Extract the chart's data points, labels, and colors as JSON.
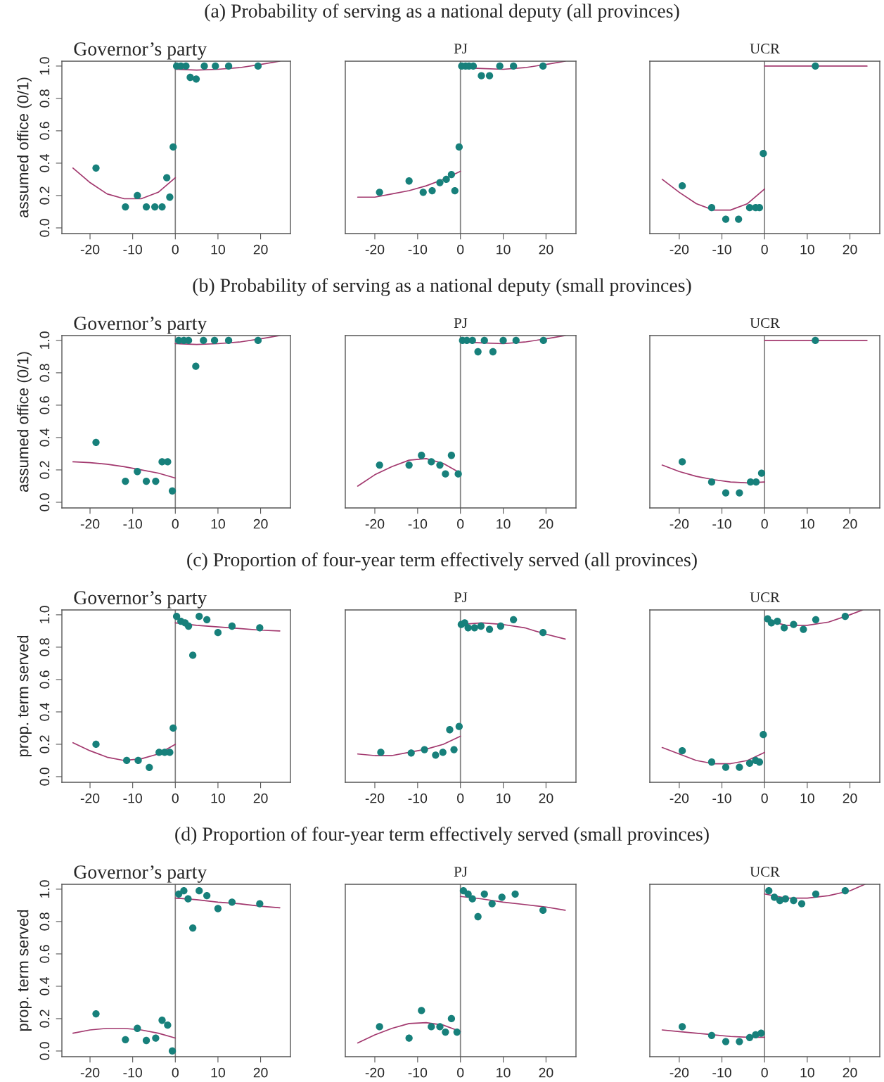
{
  "chart_data": [
    {
      "type": "scatter",
      "title": "(a) Probability of serving as a national deputy (all provinces)",
      "subtitle": "Governor’s party",
      "ylabel": "assumed office (0/1)",
      "xlim": [
        -26.6,
        27
      ],
      "ylim": [
        -0.035,
        1.03
      ],
      "xticks": [
        -20,
        -10,
        0,
        10,
        20
      ],
      "yticks": [
        {
          "value": 0,
          "label": "0.0"
        },
        {
          "value": 0.2,
          "label": "0.2"
        },
        {
          "value": 0.4,
          "label": "0.4"
        },
        {
          "value": 0.6,
          "label": "0.6"
        },
        {
          "value": 0.8,
          "label": "0.8"
        },
        {
          "value": 1,
          "label": "1.0"
        }
      ],
      "ref_lines": [
        {
          "axis": "x",
          "value": 0,
          "color": "#7f7f7f"
        }
      ],
      "series": [
        {
          "type": "scatter",
          "marker": "circle",
          "color": "#17807b",
          "x": [
            -18.6,
            -11.7,
            -8.9,
            -6.8,
            -4.8,
            -3.1,
            -2,
            -1.3,
            -0.5,
            0.3,
            1.3,
            2.5,
            3.5,
            4.9,
            6.8,
            9.4,
            12.5,
            19.4
          ],
          "values": [
            0.37,
            0.13,
            0.2,
            0.13,
            0.13,
            0.13,
            0.31,
            0.19,
            0.5,
            1,
            1,
            1,
            0.93,
            0.92,
            1,
            1,
            1,
            1
          ]
        },
        {
          "type": "line",
          "line_style": "solid",
          "color": "#a2386e",
          "x": [
            -24,
            -20,
            -16,
            -12,
            -8,
            -4,
            0
          ],
          "values": [
            0.37,
            0.28,
            0.21,
            0.18,
            0.18,
            0.22,
            0.31
          ]
        },
        {
          "type": "line",
          "line_style": "solid",
          "color": "#a2386e",
          "x": [
            0,
            5,
            10,
            15,
            20,
            24.5
          ],
          "values": [
            0.98,
            0.975,
            0.98,
            0.99,
            1.01,
            1.03
          ]
        }
      ]
    },
    {
      "type": "scatter",
      "subtitle": "PJ",
      "xlim": [
        -26.9,
        27
      ],
      "ylim": [
        -0.035,
        1.03
      ],
      "xticks": [
        -20,
        -10,
        0,
        10,
        20
      ],
      "tick_labels": "x",
      "ref_lines": [
        {
          "axis": "x",
          "value": 0,
          "color": "#7f7f7f"
        }
      ],
      "series": [
        {
          "type": "scatter",
          "marker": "circle",
          "color": "#17807b",
          "x": [
            -18.9,
            -12,
            -8.7,
            -6.6,
            -4.8,
            -3.3,
            -2.1,
            -1.3,
            -0.3,
            0.3,
            1.2,
            2,
            3,
            4.9,
            6.8,
            9.2,
            12.4,
            19.3
          ],
          "values": [
            0.22,
            0.29,
            0.22,
            0.23,
            0.28,
            0.3,
            0.33,
            0.23,
            0.5,
            1,
            1,
            1,
            1,
            0.94,
            0.94,
            1,
            1,
            1
          ]
        },
        {
          "type": "line",
          "line_style": "solid",
          "color": "#a2386e",
          "x": [
            -24,
            -20,
            -16,
            -12,
            -8,
            -4,
            0
          ],
          "values": [
            0.19,
            0.19,
            0.21,
            0.23,
            0.26,
            0.3,
            0.35
          ]
        },
        {
          "type": "line",
          "line_style": "solid",
          "color": "#a2386e",
          "x": [
            0,
            5,
            10,
            15,
            20,
            24.5
          ],
          "values": [
            0.99,
            0.985,
            0.98,
            0.99,
            1.01,
            1.03
          ]
        }
      ]
    },
    {
      "type": "scatter",
      "subtitle": "UCR",
      "xlim": [
        -26.9,
        27
      ],
      "ylim": [
        -0.035,
        1.03
      ],
      "xticks": [
        -20,
        -10,
        0,
        10,
        20
      ],
      "tick_labels": "x",
      "ref_lines": [
        {
          "axis": "x",
          "value": 0,
          "color": "#7f7f7f"
        }
      ],
      "series": [
        {
          "type": "scatter",
          "marker": "circle",
          "color": "#17807b",
          "x": [
            -19.3,
            -12.4,
            -9.1,
            -6.1,
            -3.5,
            -2.1,
            -1.2,
            -0.3,
            11.9
          ],
          "values": [
            0.26,
            0.125,
            0.054,
            0.054,
            0.125,
            0.125,
            0.125,
            0.46,
            1
          ]
        },
        {
          "type": "line",
          "line_style": "solid",
          "color": "#a2386e",
          "x": [
            -24,
            -20,
            -16,
            -12,
            -8,
            -4,
            0
          ],
          "values": [
            0.3,
            0.22,
            0.15,
            0.11,
            0.11,
            0.15,
            0.24
          ]
        },
        {
          "type": "line",
          "line_style": "solid",
          "color": "#a2386e",
          "x": [
            0,
            24
          ],
          "values": [
            1,
            1
          ]
        }
      ]
    },
    {
      "type": "scatter",
      "title": "(b) Probability of serving as a national deputy (small provinces)",
      "subtitle": "Governor’s party",
      "ylabel": "assumed office (0/1)",
      "xlim": [
        -26.6,
        27
      ],
      "ylim": [
        -0.035,
        1.03
      ],
      "xticks": [
        -20,
        -10,
        0,
        10,
        20
      ],
      "yticks": [
        {
          "value": 0,
          "label": "0.0"
        },
        {
          "value": 0.2,
          "label": "0.2"
        },
        {
          "value": 0.4,
          "label": "0.4"
        },
        {
          "value": 0.6,
          "label": "0.6"
        },
        {
          "value": 0.8,
          "label": "0.8"
        },
        {
          "value": 1,
          "label": "1.0"
        }
      ],
      "ref_lines": [
        {
          "axis": "x",
          "value": 0,
          "color": "#7f7f7f"
        }
      ],
      "series": [
        {
          "type": "scatter",
          "marker": "circle",
          "color": "#17807b",
          "x": [
            -18.6,
            -11.7,
            -8.9,
            -6.8,
            -4.6,
            -3.1,
            -1.8,
            -0.7,
            0.8,
            2,
            3.1,
            4.8,
            6.6,
            9.2,
            12.5,
            19.4
          ],
          "values": [
            0.37,
            0.13,
            0.19,
            0.13,
            0.13,
            0.25,
            0.25,
            0.07,
            1,
            1,
            1,
            0.84,
            1,
            1,
            1,
            1
          ]
        },
        {
          "type": "line",
          "line_style": "solid",
          "color": "#a2386e",
          "x": [
            -24,
            -20,
            -16,
            -12,
            -8,
            -4,
            0
          ],
          "values": [
            0.25,
            0.245,
            0.235,
            0.22,
            0.2,
            0.18,
            0.15
          ]
        },
        {
          "type": "line",
          "line_style": "solid",
          "color": "#a2386e",
          "x": [
            0,
            5,
            10,
            15,
            20,
            24.5
          ],
          "values": [
            0.98,
            0.975,
            0.98,
            0.99,
            1.01,
            1.03
          ]
        }
      ]
    },
    {
      "type": "scatter",
      "subtitle": "PJ",
      "xlim": [
        -26.9,
        27
      ],
      "ylim": [
        -0.035,
        1.03
      ],
      "xticks": [
        -20,
        -10,
        0,
        10,
        20
      ],
      "tick_labels": "x",
      "ref_lines": [
        {
          "axis": "x",
          "value": 0,
          "color": "#7f7f7f"
        }
      ],
      "series": [
        {
          "type": "scatter",
          "marker": "circle",
          "color": "#17807b",
          "x": [
            -18.9,
            -12,
            -9.1,
            -6.8,
            -4.8,
            -3.5,
            -2.1,
            -0.5,
            0.5,
            1.5,
            2.8,
            4.1,
            5.6,
            7.6,
            10,
            13,
            19.4
          ],
          "values": [
            0.23,
            0.23,
            0.29,
            0.25,
            0.23,
            0.175,
            0.29,
            0.175,
            1,
            1,
            1,
            0.93,
            1,
            0.93,
            1,
            1,
            1
          ]
        },
        {
          "type": "line",
          "line_style": "solid",
          "color": "#a2386e",
          "x": [
            -24,
            -20,
            -16,
            -12,
            -8,
            -4,
            0
          ],
          "values": [
            0.1,
            0.17,
            0.22,
            0.26,
            0.27,
            0.24,
            0.18
          ]
        },
        {
          "type": "line",
          "line_style": "solid",
          "color": "#a2386e",
          "x": [
            0,
            5,
            10,
            15,
            20,
            24.5
          ],
          "values": [
            0.99,
            0.985,
            0.98,
            0.99,
            1.01,
            1.03
          ]
        }
      ]
    },
    {
      "type": "scatter",
      "subtitle": "UCR",
      "xlim": [
        -26.9,
        27
      ],
      "ylim": [
        -0.035,
        1.03
      ],
      "xticks": [
        -20,
        -10,
        0,
        10,
        20
      ],
      "tick_labels": "x",
      "ref_lines": [
        {
          "axis": "x",
          "value": 0,
          "color": "#7f7f7f"
        }
      ],
      "series": [
        {
          "type": "scatter",
          "marker": "circle",
          "color": "#17807b",
          "x": [
            -19.3,
            -12.4,
            -9.1,
            -5.9,
            -3.3,
            -2,
            -0.7,
            11.9
          ],
          "values": [
            0.25,
            0.125,
            0.058,
            0.058,
            0.125,
            0.125,
            0.18,
            1
          ]
        },
        {
          "type": "line",
          "line_style": "solid",
          "color": "#a2386e",
          "x": [
            -24,
            -20,
            -16,
            -12,
            -8,
            -4,
            0
          ],
          "values": [
            0.23,
            0.19,
            0.16,
            0.14,
            0.125,
            0.12,
            0.125
          ]
        },
        {
          "type": "line",
          "line_style": "solid",
          "color": "#a2386e",
          "x": [
            0,
            24
          ],
          "values": [
            1,
            1
          ]
        }
      ]
    },
    {
      "type": "scatter",
      "title": "(c) Proportion of four-year term effectively served (all provinces)",
      "subtitle": "Governor’s party",
      "ylabel": "prop. term served",
      "xlim": [
        -26.6,
        27
      ],
      "ylim": [
        -0.035,
        1.03
      ],
      "xticks": [
        -20,
        -10,
        0,
        10,
        20
      ],
      "yticks": [
        {
          "value": 0,
          "label": "0.0"
        },
        {
          "value": 0.2,
          "label": "0.2"
        },
        {
          "value": 0.4,
          "label": "0.4"
        },
        {
          "value": 0.6,
          "label": "0.6"
        },
        {
          "value": 0.8,
          "label": "0.8"
        },
        {
          "value": 1,
          "label": "1.0"
        }
      ],
      "ref_lines": [
        {
          "axis": "x",
          "value": 0,
          "color": "#7f7f7f"
        }
      ],
      "series": [
        {
          "type": "scatter",
          "marker": "circle",
          "color": "#17807b",
          "x": [
            -18.6,
            -11.4,
            -8.7,
            -6.1,
            -3.8,
            -2.5,
            -1.3,
            -0.5,
            0.3,
            1.3,
            2.3,
            3.1,
            4.1,
            5.6,
            7.4,
            10,
            13.3,
            19.8
          ],
          "values": [
            0.2,
            0.1,
            0.1,
            0.057,
            0.15,
            0.15,
            0.15,
            0.3,
            0.99,
            0.96,
            0.95,
            0.93,
            0.75,
            0.99,
            0.97,
            0.89,
            0.93,
            0.92
          ]
        },
        {
          "type": "line",
          "line_style": "solid",
          "color": "#a2386e",
          "x": [
            -24,
            -20,
            -16,
            -12,
            -8,
            -4,
            0
          ],
          "values": [
            0.21,
            0.16,
            0.12,
            0.1,
            0.11,
            0.14,
            0.2
          ]
        },
        {
          "type": "line",
          "line_style": "solid",
          "color": "#a2386e",
          "x": [
            0,
            5,
            10,
            15,
            20,
            24.5
          ],
          "values": [
            0.95,
            0.935,
            0.925,
            0.915,
            0.905,
            0.9
          ]
        }
      ]
    },
    {
      "type": "scatter",
      "subtitle": "PJ",
      "xlim": [
        -26.9,
        27
      ],
      "ylim": [
        -0.035,
        1.03
      ],
      "xticks": [
        -20,
        -10,
        0,
        10,
        20
      ],
      "tick_labels": "x",
      "ref_lines": [
        {
          "axis": "x",
          "value": 0,
          "color": "#7f7f7f"
        }
      ],
      "series": [
        {
          "type": "scatter",
          "marker": "circle",
          "color": "#17807b",
          "x": [
            -18.6,
            -11.5,
            -8.4,
            -5.8,
            -4.1,
            -2.5,
            -1.5,
            -0.3,
            0.2,
            1,
            1.8,
            3.3,
            4.8,
            6.8,
            9.4,
            12.4,
            19.3
          ],
          "values": [
            0.15,
            0.146,
            0.167,
            0.133,
            0.15,
            0.29,
            0.167,
            0.31,
            0.94,
            0.95,
            0.92,
            0.92,
            0.93,
            0.91,
            0.93,
            0.97,
            0.89
          ]
        },
        {
          "type": "line",
          "line_style": "solid",
          "color": "#a2386e",
          "x": [
            -24,
            -20,
            -16,
            -12,
            -8,
            -4,
            0
          ],
          "values": [
            0.14,
            0.13,
            0.13,
            0.15,
            0.17,
            0.2,
            0.25
          ]
        },
        {
          "type": "line",
          "line_style": "solid",
          "color": "#a2386e",
          "x": [
            0,
            5,
            10,
            15,
            20,
            24.5
          ],
          "values": [
            0.94,
            0.95,
            0.94,
            0.92,
            0.88,
            0.85
          ]
        }
      ]
    },
    {
      "type": "scatter",
      "subtitle": "UCR",
      "xlim": [
        -26.9,
        27
      ],
      "ylim": [
        -0.035,
        1.03
      ],
      "xticks": [
        -20,
        -10,
        0,
        10,
        20
      ],
      "tick_labels": "x",
      "ref_lines": [
        {
          "axis": "x",
          "value": 0,
          "color": "#7f7f7f"
        }
      ],
      "series": [
        {
          "type": "scatter",
          "marker": "circle",
          "color": "#17807b",
          "x": [
            -19.3,
            -12.4,
            -9.1,
            -5.9,
            -3.5,
            -2.1,
            -1.2,
            -0.3,
            0.7,
            1.6,
            3,
            4.6,
            6.8,
            9.1,
            12,
            18.9
          ],
          "values": [
            0.16,
            0.09,
            0.058,
            0.058,
            0.083,
            0.1,
            0.09,
            0.26,
            0.975,
            0.95,
            0.96,
            0.92,
            0.94,
            0.91,
            0.97,
            0.99
          ]
        },
        {
          "type": "line",
          "line_style": "solid",
          "color": "#a2386e",
          "x": [
            -24,
            -20,
            -16,
            -12,
            -8,
            -4,
            0
          ],
          "values": [
            0.18,
            0.14,
            0.1,
            0.08,
            0.08,
            0.1,
            0.15
          ]
        },
        {
          "type": "line",
          "line_style": "solid",
          "color": "#a2386e",
          "x": [
            0,
            5,
            10,
            15,
            20,
            23
          ],
          "values": [
            0.97,
            0.935,
            0.935,
            0.955,
            1,
            1.03
          ]
        }
      ]
    },
    {
      "type": "scatter",
      "title": "(d) Proportion of four-year term effectively served (small provinces)",
      "subtitle": "Governor’s party",
      "ylabel": "prop. term served",
      "xlim": [
        -26.6,
        27
      ],
      "ylim": [
        -0.035,
        1.03
      ],
      "xticks": [
        -20,
        -10,
        0,
        10,
        20
      ],
      "yticks": [
        {
          "value": 0,
          "label": "0.0"
        },
        {
          "value": 0.2,
          "label": "0.2"
        },
        {
          "value": 0.4,
          "label": "0.4"
        },
        {
          "value": 0.6,
          "label": "0.6"
        },
        {
          "value": 0.8,
          "label": "0.8"
        },
        {
          "value": 1,
          "label": "1.0"
        }
      ],
      "ref_lines": [
        {
          "axis": "x",
          "value": 0,
          "color": "#7f7f7f"
        }
      ],
      "series": [
        {
          "type": "scatter",
          "marker": "circle",
          "color": "#17807b",
          "x": [
            -18.6,
            -11.7,
            -8.9,
            -6.8,
            -4.6,
            -3.1,
            -1.8,
            -0.7,
            0.8,
            2,
            3,
            4.1,
            5.6,
            7.4,
            10,
            13.3,
            19.8
          ],
          "values": [
            0.23,
            0.07,
            0.14,
            0.065,
            0.08,
            0.19,
            0.16,
            0,
            0.97,
            0.99,
            0.94,
            0.76,
            0.99,
            0.96,
            0.88,
            0.92,
            0.91
          ]
        },
        {
          "type": "line",
          "line_style": "solid",
          "color": "#a2386e",
          "x": [
            -24,
            -20,
            -16,
            -12,
            -8,
            -4,
            0
          ],
          "values": [
            0.11,
            0.13,
            0.14,
            0.14,
            0.13,
            0.11,
            0.08
          ]
        },
        {
          "type": "line",
          "line_style": "solid",
          "color": "#a2386e",
          "x": [
            0,
            5,
            10,
            15,
            20,
            24.5
          ],
          "values": [
            0.945,
            0.935,
            0.92,
            0.91,
            0.895,
            0.885
          ]
        }
      ]
    },
    {
      "type": "scatter",
      "subtitle": "PJ",
      "xlim": [
        -26.9,
        27
      ],
      "ylim": [
        -0.035,
        1.03
      ],
      "xticks": [
        -20,
        -10,
        0,
        10,
        20
      ],
      "tick_labels": "x",
      "ref_lines": [
        {
          "axis": "x",
          "value": 0,
          "color": "#7f7f7f"
        }
      ],
      "series": [
        {
          "type": "scatter",
          "marker": "circle",
          "color": "#17807b",
          "x": [
            -18.9,
            -12,
            -9.1,
            -6.8,
            -4.8,
            -3.5,
            -2.1,
            -0.8,
            0.7,
            1.8,
            2.8,
            4.1,
            5.6,
            7.4,
            9.7,
            12.8,
            19.3
          ],
          "values": [
            0.15,
            0.08,
            0.25,
            0.15,
            0.15,
            0.117,
            0.2,
            0.117,
            0.99,
            0.97,
            0.94,
            0.83,
            0.97,
            0.91,
            0.95,
            0.97,
            0.87
          ]
        },
        {
          "type": "line",
          "line_style": "solid",
          "color": "#a2386e",
          "x": [
            -24,
            -20,
            -16,
            -12,
            -8,
            -4,
            0
          ],
          "values": [
            0.05,
            0.1,
            0.14,
            0.17,
            0.175,
            0.16,
            0.12
          ]
        },
        {
          "type": "line",
          "line_style": "solid",
          "color": "#a2386e",
          "x": [
            0,
            5,
            10,
            15,
            20,
            24.5
          ],
          "values": [
            0.955,
            0.94,
            0.92,
            0.905,
            0.89,
            0.87
          ]
        }
      ]
    },
    {
      "type": "scatter",
      "subtitle": "UCR",
      "xlim": [
        -26.9,
        27
      ],
      "ylim": [
        -0.035,
        1.03
      ],
      "xticks": [
        -20,
        -10,
        0,
        10,
        20
      ],
      "tick_labels": "x",
      "ref_lines": [
        {
          "axis": "x",
          "value": 0,
          "color": "#7f7f7f"
        }
      ],
      "series": [
        {
          "type": "scatter",
          "marker": "circle",
          "color": "#17807b",
          "x": [
            -19.3,
            -12.4,
            -9.1,
            -5.9,
            -3.5,
            -2.1,
            -0.8,
            1,
            2.3,
            3.6,
            4.9,
            6.8,
            8.7,
            12,
            18.9
          ],
          "values": [
            0.15,
            0.096,
            0.058,
            0.058,
            0.083,
            0.1,
            0.11,
            0.99,
            0.95,
            0.93,
            0.94,
            0.93,
            0.91,
            0.97,
            0.99
          ]
        },
        {
          "type": "line",
          "line_style": "solid",
          "color": "#a2386e",
          "x": [
            -24,
            -20,
            -16,
            -12,
            -8,
            -4,
            0
          ],
          "values": [
            0.13,
            0.12,
            0.11,
            0.1,
            0.09,
            0.085,
            0.085
          ]
        },
        {
          "type": "line",
          "line_style": "solid",
          "color": "#a2386e",
          "x": [
            0,
            5,
            10,
            15,
            20,
            23.5
          ],
          "values": [
            0.97,
            0.945,
            0.945,
            0.96,
            0.99,
            1.03
          ]
        }
      ]
    }
  ]
}
